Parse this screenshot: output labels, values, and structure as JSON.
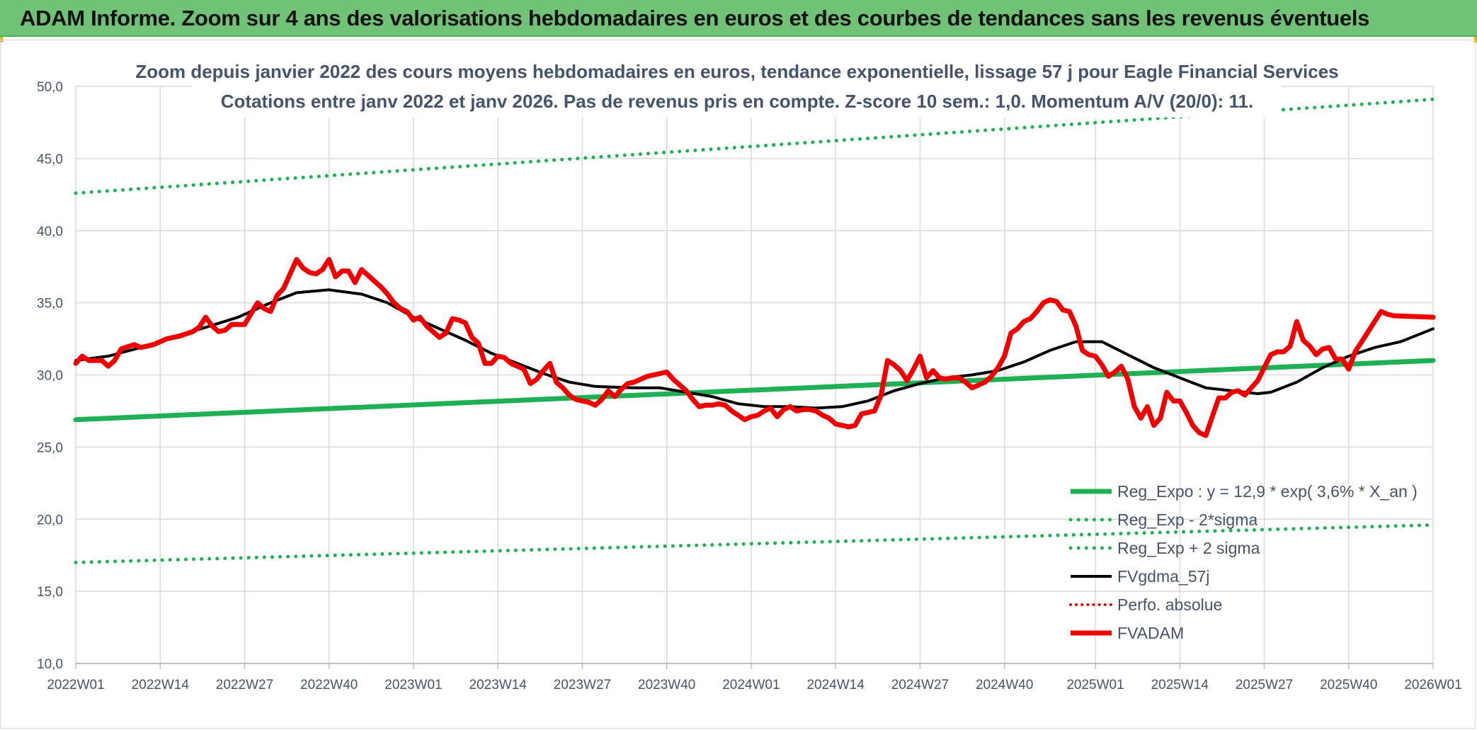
{
  "banner": {
    "title": "ADAM Informe. Zoom sur 4 ans des valorisations hebdomadaires en euros et des courbes de tendances sans les revenus éventuels"
  },
  "colors": {
    "banner_bg": "#6fc276",
    "trend_green": "#1fb055",
    "price_red": "#ee0000",
    "smooth_black": "#000000",
    "axis_text": "#44546a",
    "grid": "#d9d9d9"
  },
  "chart_data": {
    "type": "line",
    "title_line1": "Zoom depuis janvier 2022 des cours moyens hebdomadaires en euros, tendance exponentielle, lissage 57 j pour Eagle Financial Services",
    "title_line2": "Cotations entre janv 2022 et janv 2026. Pas de revenus pris en compte. Z-score 10 sem.: 1,0. Momentum A/V (20/0): 11.",
    "x_start_week": 0,
    "x_end_week": 209,
    "x_ticks": [
      {
        "week": 0,
        "label": "2022W01"
      },
      {
        "week": 13,
        "label": "2022W14"
      },
      {
        "week": 26,
        "label": "2022W27"
      },
      {
        "week": 39,
        "label": "2022W40"
      },
      {
        "week": 52,
        "label": "2023W01"
      },
      {
        "week": 65,
        "label": "2023W14"
      },
      {
        "week": 78,
        "label": "2023W27"
      },
      {
        "week": 91,
        "label": "2023W40"
      },
      {
        "week": 104,
        "label": "2024W01"
      },
      {
        "week": 117,
        "label": "2024W14"
      },
      {
        "week": 130,
        "label": "2024W27"
      },
      {
        "week": 143,
        "label": "2024W40"
      },
      {
        "week": 157,
        "label": "2025W01"
      },
      {
        "week": 170,
        "label": "2025W14"
      },
      {
        "week": 183,
        "label": "2025W27"
      },
      {
        "week": 196,
        "label": "2025W40"
      },
      {
        "week": 209,
        "label": "2026W01"
      }
    ],
    "y_ticks": [
      "10,0",
      "15,0",
      "20,0",
      "25,0",
      "30,0",
      "35,0",
      "40,0",
      "45,0",
      "50,0"
    ],
    "ylim": [
      10,
      50
    ],
    "grid": true,
    "legend_position": "bottom-right",
    "series": [
      {
        "name": "Reg_Expo : y = 12,9 * exp( 3,6% *  X_an )",
        "style": "solid-thick-green",
        "points": [
          [
            0,
            26.9
          ],
          [
            209,
            31.0
          ]
        ]
      },
      {
        "name": "Reg_Exp - 2*sigma",
        "style": "dotted-green",
        "points": [
          [
            0,
            17.0
          ],
          [
            209,
            19.6
          ]
        ]
      },
      {
        "name": "Reg_Exp + 2 sigma",
        "style": "dotted-green",
        "points": [
          [
            0,
            42.6
          ],
          [
            209,
            49.1
          ]
        ]
      },
      {
        "name": "FVgdma_57j",
        "style": "solid-black",
        "points": [
          [
            0,
            31.0
          ],
          [
            5,
            31.3
          ],
          [
            10,
            31.9
          ],
          [
            15,
            32.6
          ],
          [
            20,
            33.3
          ],
          [
            25,
            34.0
          ],
          [
            30,
            35.0
          ],
          [
            34,
            35.7
          ],
          [
            39,
            35.9
          ],
          [
            44,
            35.6
          ],
          [
            48,
            35.0
          ],
          [
            52,
            34.0
          ],
          [
            56,
            33.2
          ],
          [
            60,
            32.4
          ],
          [
            64,
            31.5
          ],
          [
            68,
            30.8
          ],
          [
            72,
            30.1
          ],
          [
            76,
            29.5
          ],
          [
            80,
            29.2
          ],
          [
            86,
            29.1
          ],
          [
            90,
            29.1
          ],
          [
            94,
            28.8
          ],
          [
            98,
            28.5
          ],
          [
            102,
            28.0
          ],
          [
            106,
            27.8
          ],
          [
            110,
            27.8
          ],
          [
            114,
            27.7
          ],
          [
            118,
            27.8
          ],
          [
            122,
            28.2
          ],
          [
            126,
            28.9
          ],
          [
            130,
            29.4
          ],
          [
            134,
            29.8
          ],
          [
            138,
            30.0
          ],
          [
            142,
            30.3
          ],
          [
            146,
            30.9
          ],
          [
            150,
            31.7
          ],
          [
            154,
            32.3
          ],
          [
            158,
            32.3
          ],
          [
            162,
            31.4
          ],
          [
            166,
            30.5
          ],
          [
            170,
            29.8
          ],
          [
            174,
            29.1
          ],
          [
            178,
            28.9
          ],
          [
            182,
            28.7
          ],
          [
            184,
            28.8
          ],
          [
            188,
            29.5
          ],
          [
            192,
            30.5
          ],
          [
            196,
            31.3
          ],
          [
            200,
            31.9
          ],
          [
            204,
            32.3
          ],
          [
            209,
            33.2
          ]
        ]
      },
      {
        "name": "Perfo. absolue",
        "style": "dotted-red",
        "points": []
      },
      {
        "name": "FVADAM",
        "style": "solid-thick-red",
        "points": [
          [
            0,
            30.8
          ],
          [
            1,
            31.3
          ],
          [
            2,
            31.0
          ],
          [
            4,
            31.0
          ],
          [
            5,
            30.6
          ],
          [
            6,
            31.0
          ],
          [
            7,
            31.8
          ],
          [
            9,
            32.1
          ],
          [
            10,
            31.9
          ],
          [
            12,
            32.1
          ],
          [
            14,
            32.5
          ],
          [
            16,
            32.7
          ],
          [
            18,
            33.0
          ],
          [
            19,
            33.3
          ],
          [
            20,
            34.0
          ],
          [
            21,
            33.4
          ],
          [
            22,
            33.0
          ],
          [
            23,
            33.1
          ],
          [
            24,
            33.5
          ],
          [
            26,
            33.5
          ],
          [
            28,
            35.0
          ],
          [
            29,
            34.6
          ],
          [
            30,
            34.4
          ],
          [
            31,
            35.5
          ],
          [
            32,
            36.0
          ],
          [
            33,
            37.0
          ],
          [
            34,
            38.0
          ],
          [
            35,
            37.4
          ],
          [
            36,
            37.1
          ],
          [
            37,
            37.0
          ],
          [
            38,
            37.3
          ],
          [
            39,
            38.0
          ],
          [
            40,
            36.8
          ],
          [
            41,
            37.2
          ],
          [
            42,
            37.2
          ],
          [
            43,
            36.4
          ],
          [
            44,
            37.3
          ],
          [
            45,
            36.9
          ],
          [
            46,
            36.5
          ],
          [
            47,
            36.1
          ],
          [
            48,
            35.6
          ],
          [
            49,
            35.0
          ],
          [
            50,
            34.6
          ],
          [
            51,
            34.4
          ],
          [
            52,
            33.8
          ],
          [
            53,
            34.0
          ],
          [
            54,
            33.4
          ],
          [
            55,
            33.0
          ],
          [
            56,
            32.6
          ],
          [
            57,
            32.9
          ],
          [
            58,
            33.9
          ],
          [
            59,
            33.8
          ],
          [
            60,
            33.6
          ],
          [
            61,
            32.6
          ],
          [
            62,
            32.2
          ],
          [
            63,
            30.8
          ],
          [
            64,
            30.8
          ],
          [
            65,
            31.3
          ],
          [
            66,
            31.2
          ],
          [
            67,
            30.8
          ],
          [
            68,
            30.6
          ],
          [
            69,
            30.4
          ],
          [
            70,
            29.4
          ],
          [
            71,
            29.7
          ],
          [
            72,
            30.3
          ],
          [
            73,
            30.8
          ],
          [
            74,
            29.5
          ],
          [
            75,
            29.1
          ],
          [
            76,
            28.6
          ],
          [
            77,
            28.3
          ],
          [
            78,
            28.2
          ],
          [
            79,
            28.1
          ],
          [
            80,
            27.9
          ],
          [
            81,
            28.3
          ],
          [
            82,
            28.9
          ],
          [
            83,
            28.5
          ],
          [
            84,
            29.0
          ],
          [
            85,
            29.4
          ],
          [
            86,
            29.5
          ],
          [
            87,
            29.7
          ],
          [
            88,
            29.9
          ],
          [
            89,
            30.0
          ],
          [
            90,
            30.1
          ],
          [
            91,
            30.2
          ],
          [
            92,
            29.7
          ],
          [
            93,
            29.3
          ],
          [
            94,
            28.9
          ],
          [
            95,
            28.3
          ],
          [
            96,
            27.8
          ],
          [
            97,
            27.9
          ],
          [
            98,
            27.9
          ],
          [
            99,
            28.0
          ],
          [
            100,
            27.9
          ],
          [
            101,
            27.5
          ],
          [
            102,
            27.2
          ],
          [
            103,
            26.9
          ],
          [
            104,
            27.1
          ],
          [
            105,
            27.2
          ],
          [
            106,
            27.5
          ],
          [
            107,
            27.7
          ],
          [
            108,
            27.1
          ],
          [
            109,
            27.6
          ],
          [
            110,
            27.8
          ],
          [
            111,
            27.5
          ],
          [
            112,
            27.6
          ],
          [
            113,
            27.6
          ],
          [
            114,
            27.5
          ],
          [
            115,
            27.2
          ],
          [
            116,
            27.0
          ],
          [
            117,
            26.6
          ],
          [
            118,
            26.5
          ],
          [
            119,
            26.4
          ],
          [
            120,
            26.5
          ],
          [
            121,
            27.3
          ],
          [
            122,
            27.4
          ],
          [
            123,
            27.5
          ],
          [
            124,
            28.6
          ],
          [
            125,
            31.0
          ],
          [
            126,
            30.7
          ],
          [
            127,
            30.3
          ],
          [
            128,
            29.6
          ],
          [
            129,
            30.4
          ],
          [
            130,
            31.3
          ],
          [
            131,
            29.8
          ],
          [
            132,
            30.3
          ],
          [
            133,
            29.8
          ],
          [
            134,
            29.7
          ],
          [
            135,
            29.8
          ],
          [
            136,
            29.8
          ],
          [
            137,
            29.5
          ],
          [
            138,
            29.1
          ],
          [
            139,
            29.3
          ],
          [
            140,
            29.5
          ],
          [
            141,
            29.9
          ],
          [
            142,
            30.5
          ],
          [
            143,
            31.3
          ],
          [
            144,
            32.9
          ],
          [
            145,
            33.2
          ],
          [
            146,
            33.7
          ],
          [
            147,
            33.9
          ],
          [
            148,
            34.4
          ],
          [
            149,
            35.0
          ],
          [
            150,
            35.2
          ],
          [
            151,
            35.1
          ],
          [
            152,
            34.5
          ],
          [
            153,
            34.4
          ],
          [
            154,
            33.4
          ],
          [
            155,
            31.7
          ],
          [
            156,
            31.4
          ],
          [
            157,
            31.3
          ],
          [
            158,
            30.7
          ],
          [
            159,
            29.9
          ],
          [
            160,
            30.2
          ],
          [
            161,
            30.6
          ],
          [
            162,
            29.7
          ],
          [
            163,
            27.8
          ],
          [
            164,
            27.0
          ],
          [
            165,
            27.8
          ],
          [
            166,
            26.5
          ],
          [
            167,
            27.0
          ],
          [
            168,
            28.8
          ],
          [
            169,
            28.2
          ],
          [
            170,
            28.2
          ],
          [
            171,
            27.4
          ],
          [
            172,
            26.5
          ],
          [
            173,
            26.0
          ],
          [
            174,
            25.8
          ],
          [
            175,
            27.1
          ],
          [
            176,
            28.4
          ],
          [
            177,
            28.4
          ],
          [
            178,
            28.8
          ],
          [
            179,
            28.9
          ],
          [
            180,
            28.6
          ],
          [
            181,
            29.1
          ],
          [
            182,
            29.6
          ],
          [
            183,
            30.5
          ],
          [
            184,
            31.4
          ],
          [
            185,
            31.6
          ],
          [
            186,
            31.6
          ],
          [
            187,
            32.0
          ],
          [
            188,
            33.7
          ],
          [
            189,
            32.4
          ],
          [
            190,
            32.0
          ],
          [
            191,
            31.4
          ],
          [
            192,
            31.8
          ],
          [
            193,
            31.9
          ],
          [
            194,
            31.1
          ],
          [
            195,
            31.1
          ],
          [
            196,
            30.4
          ],
          [
            197,
            31.6
          ],
          [
            198,
            32.3
          ],
          [
            199,
            33.0
          ],
          [
            200,
            33.7
          ],
          [
            201,
            34.4
          ],
          [
            202,
            34.2
          ],
          [
            203,
            34.1
          ],
          [
            209,
            34.0
          ]
        ]
      }
    ]
  }
}
